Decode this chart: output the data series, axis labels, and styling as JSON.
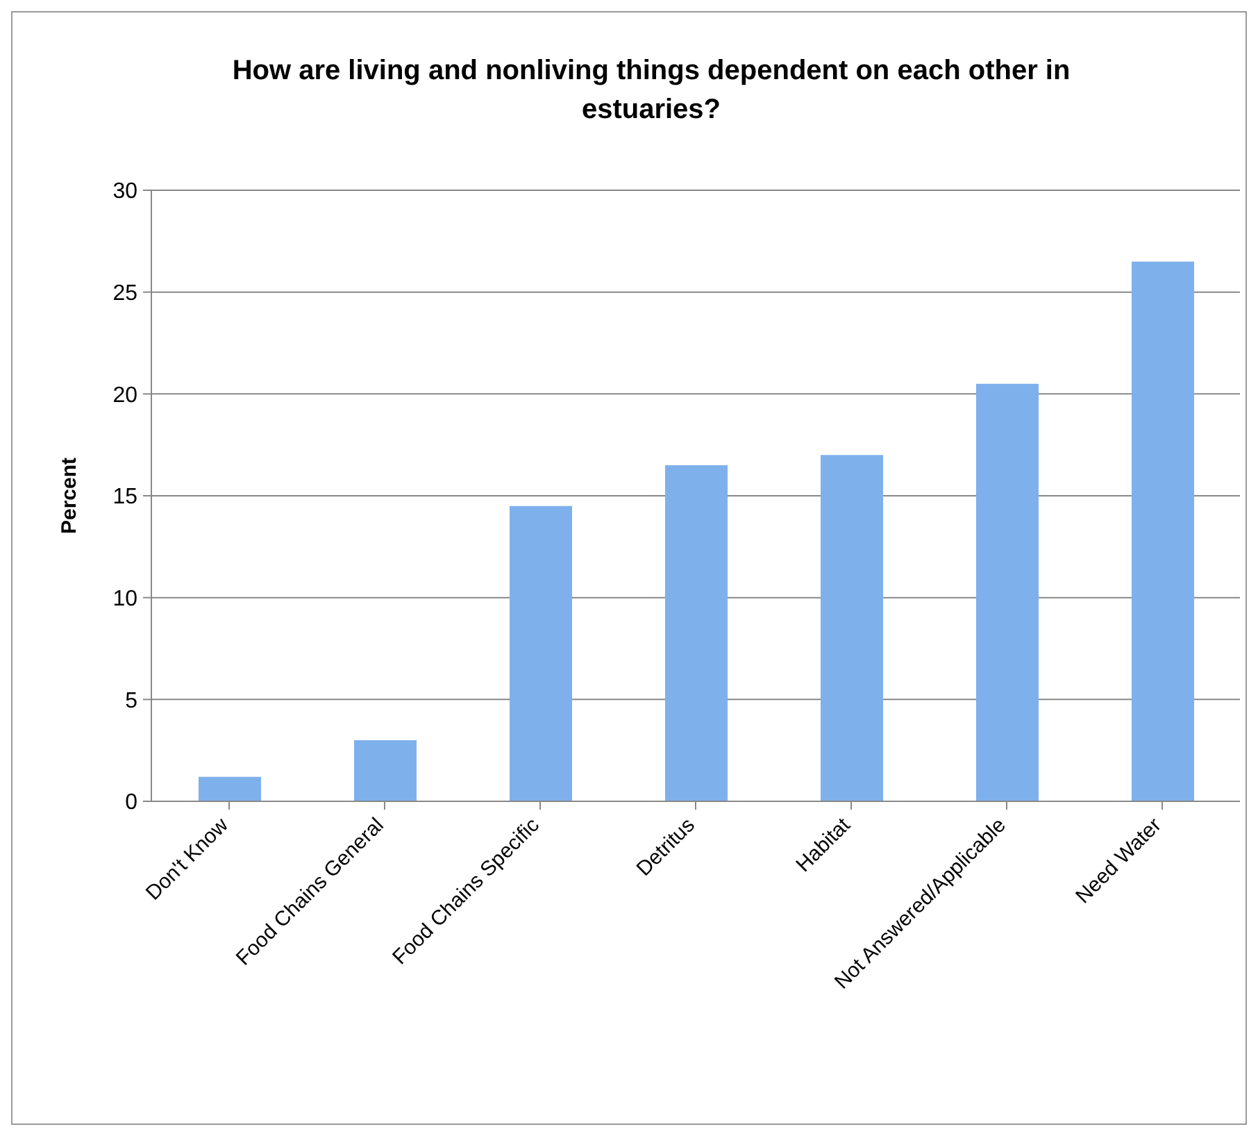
{
  "chart_data": {
    "type": "bar",
    "title": "How are living and nonliving things dependent on each other in estuaries?",
    "ylabel": "Percent",
    "categories": [
      "Don't Know",
      "Food Chains General",
      "Food Chains Specific",
      "Detritus",
      "Habitat",
      "Not Answered/Applicable",
      "Need Water"
    ],
    "values": [
      1.2,
      3,
      14.5,
      16.5,
      17,
      20.5,
      26.5
    ],
    "color": "#7eb0ec",
    "ylim": [
      0,
      30
    ],
    "yticks": [
      0,
      5,
      10,
      15,
      20,
      25,
      30
    ],
    "grid": "y",
    "legend": false
  }
}
